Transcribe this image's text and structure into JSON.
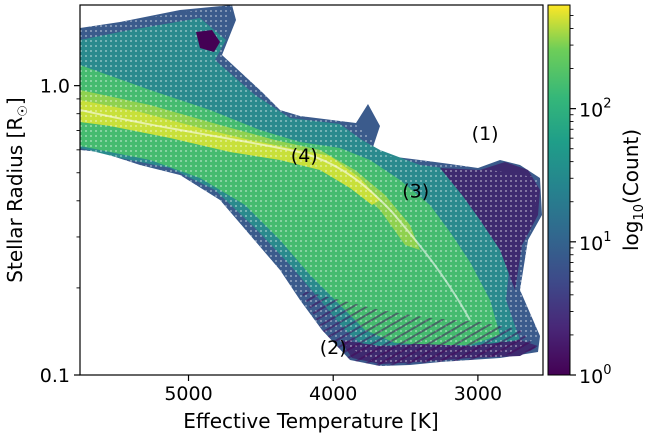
{
  "chart_data": {
    "type": "heatmap",
    "title": "",
    "xlabel": "Effective Temperature [K]",
    "ylabel": "Stellar Radius [R",
    "ylabel_symbol": "☉",
    "ylabel_close": "]",
    "x_reversed": true,
    "xlim": [
      5750,
      2550
    ],
    "ylim": [
      0.1,
      1.9
    ],
    "y_scale": "log",
    "x_ticks": [
      {
        "value": 5000,
        "label": "5000"
      },
      {
        "value": 4000,
        "label": "4000"
      },
      {
        "value": 3000,
        "label": "3000"
      }
    ],
    "y_ticks": [
      {
        "value": 0.1,
        "label": "0.1"
      },
      {
        "value": 1.0,
        "label": "1.0"
      }
    ],
    "colorbar": {
      "label_prefix": "log",
      "label_sub": "10",
      "label_suffix": "(Count)",
      "scale": "log",
      "range": [
        1,
        600
      ],
      "colormap": "viridis",
      "ticks": [
        {
          "value": 1,
          "base": "10",
          "exp": "0"
        },
        {
          "value": 10,
          "base": "10",
          "exp": "1"
        },
        {
          "value": 100,
          "base": "10",
          "exp": "2"
        }
      ]
    },
    "annotations": [
      {
        "text": "(1)",
        "x": 2950,
        "y": 0.65
      },
      {
        "text": "(2)",
        "x": 4000,
        "y": 0.118
      },
      {
        "text": "(3)",
        "x": 3430,
        "y": 0.41
      },
      {
        "text": "(4)",
        "x": 4200,
        "y": 0.545
      }
    ]
  }
}
